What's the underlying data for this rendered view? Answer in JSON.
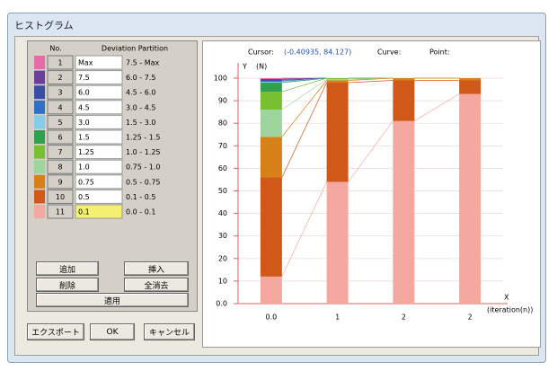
{
  "window": {
    "title": "ヒストグラム"
  },
  "table": {
    "headers": [
      "No.",
      "Deviation Partition"
    ],
    "rows": [
      {
        "no": "1",
        "deviation": "Max"
      },
      {
        "no": "2",
        "deviation": "7.5"
      },
      {
        "no": "3",
        "deviation": "6.0"
      },
      {
        "no": "4",
        "deviation": "4.5"
      },
      {
        "no": "5",
        "deviation": "3.0"
      },
      {
        "no": "6",
        "deviation": "1.5"
      },
      {
        "no": "7",
        "deviation": "1.25"
      },
      {
        "no": "8",
        "deviation": "1.0"
      },
      {
        "no": "9",
        "deviation": "0.75"
      },
      {
        "no": "10",
        "deviation": "0.5"
      },
      {
        "no": "11",
        "deviation": "0.1"
      }
    ]
  },
  "buttons": {
    "add": "追加",
    "insert": "挿入",
    "delete": "削除",
    "clear": "全消去",
    "apply": "適用",
    "export": "エクスポート",
    "ok": "OK",
    "cancel": "キャンセル"
  },
  "status": {
    "cursor": "Cursor:",
    "cursor_value": "(-0.40935, 84.127)",
    "curve": "Curve:",
    "point": "Point:"
  },
  "chart_data": {
    "type": "stacked_bar",
    "y_label": "Y",
    "y_unit": "(N)",
    "x_label": "X",
    "x_unit": "(iteration(n))",
    "categories": [
      "0.0",
      "1",
      "2",
      "2"
    ],
    "ylim": [
      0,
      100
    ],
    "yticks": [
      {
        "value": 0,
        "label": "0.0"
      },
      10,
      20,
      30,
      40,
      50,
      60,
      70,
      80,
      90,
      100
    ],
    "grid": true,
    "series": [
      {
        "name": "7.5 - Max",
        "color": "#e86aa8",
        "values": [
          0.4,
          0,
          0,
          0
        ]
      },
      {
        "name": "6.0 - 7.5",
        "color": "#6c3e9c",
        "values": [
          0.4,
          0,
          0,
          0
        ]
      },
      {
        "name": "4.5 - 6.0",
        "color": "#3c4ea4",
        "values": [
          0.4,
          0,
          0,
          0
        ]
      },
      {
        "name": "3.0 - 4.5",
        "color": "#2f6fc4",
        "values": [
          0.4,
          0,
          0,
          0
        ]
      },
      {
        "name": "1.5 - 3.0",
        "color": "#86cbe8",
        "values": [
          0.4,
          0,
          0,
          0
        ]
      },
      {
        "name": "1.25 - 1.5",
        "color": "#2fa04e",
        "values": [
          4,
          0,
          0,
          0
        ]
      },
      {
        "name": "1.0 - 1.25",
        "color": "#78c030",
        "values": [
          8,
          0.5,
          0,
          0
        ]
      },
      {
        "name": "0.75 - 1.0",
        "color": "#9ed59e",
        "values": [
          12,
          0.5,
          0,
          0
        ]
      },
      {
        "name": "0.5 - 0.75",
        "color": "#d88018",
        "values": [
          18,
          1,
          1,
          1
        ]
      },
      {
        "name": "0.1 - 0.5",
        "color": "#d05818",
        "values": [
          44,
          44,
          18,
          6
        ]
      },
      {
        "name": "0.0 - 0.1",
        "color": "#f4a8a0",
        "values": [
          12,
          54,
          81,
          93
        ]
      }
    ]
  }
}
